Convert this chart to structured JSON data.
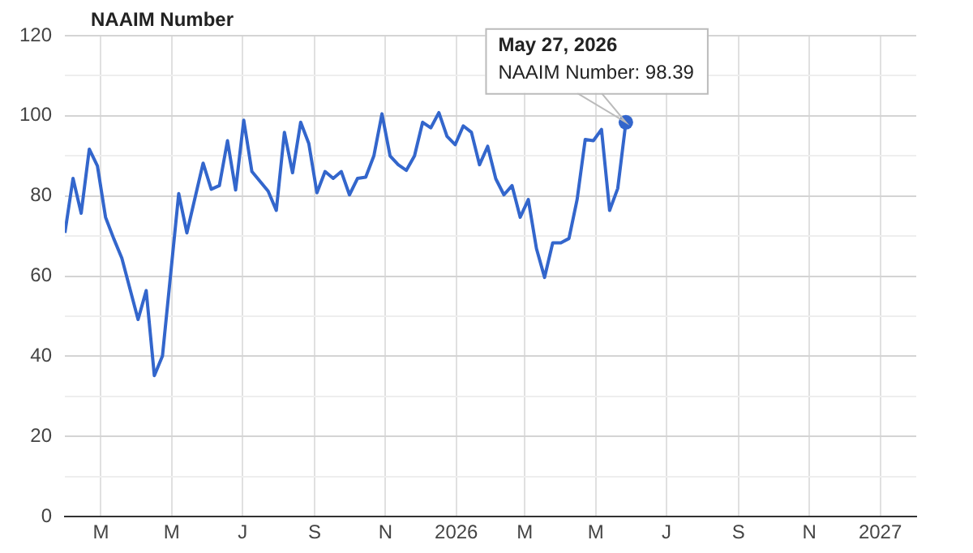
{
  "chart_data": {
    "type": "line",
    "title": "NAAIM Number",
    "x": [
      "2025-01-29",
      "2025-02-05",
      "2025-02-12",
      "2025-02-19",
      "2025-02-26",
      "2025-03-05",
      "2025-03-12",
      "2025-03-19",
      "2025-04-02",
      "2025-04-09",
      "2025-04-16",
      "2025-04-23",
      "2025-05-07",
      "2025-05-14",
      "2025-05-28",
      "2025-06-04",
      "2025-06-11",
      "2025-06-18",
      "2025-06-25",
      "2025-07-02",
      "2025-07-09",
      "2025-07-23",
      "2025-07-30",
      "2025-08-06",
      "2025-08-13",
      "2025-08-20",
      "2025-08-27",
      "2025-09-03",
      "2025-09-10",
      "2025-09-17",
      "2025-09-24",
      "2025-10-01",
      "2025-10-08",
      "2025-10-15",
      "2025-10-22",
      "2025-10-29",
      "2025-11-05",
      "2025-11-12",
      "2025-11-19",
      "2025-11-26",
      "2025-12-03",
      "2025-12-10",
      "2025-12-17",
      "2025-12-24",
      "2025-12-31",
      "2026-01-07",
      "2026-01-14",
      "2026-01-21",
      "2026-01-28",
      "2026-02-04",
      "2026-02-11",
      "2026-02-18",
      "2026-02-25",
      "2026-03-04",
      "2026-03-11",
      "2026-03-18",
      "2026-03-25",
      "2026-04-01",
      "2026-04-08",
      "2026-04-15",
      "2026-04-22",
      "2026-04-29",
      "2026-05-06",
      "2026-05-13",
      "2026-05-20",
      "2026-05-27"
    ],
    "series": [
      {
        "color": "#3366cc",
        "values": [
          70.8,
          84.4,
          75.7,
          91.7,
          87.5,
          74.7,
          69.4,
          64.5,
          49.2,
          56.4,
          35.2,
          40.1,
          80.6,
          70.8,
          88.2,
          81.7,
          82.6,
          93.8,
          81.5,
          98.9,
          86.1,
          81.2,
          76.4,
          95.9,
          85.8,
          98.4,
          93.1,
          80.8,
          86.1,
          84.4,
          86.1,
          80.3,
          84.4,
          84.7,
          90.0,
          100.5,
          90.0,
          87.8,
          86.4,
          90.0,
          98.4,
          97.0,
          100.8,
          94.9,
          92.8,
          97.5,
          95.9,
          87.8,
          92.4,
          84.3,
          80.3,
          82.6,
          74.7,
          79.1,
          66.9,
          59.7,
          68.3,
          68.3,
          69.4,
          79.1,
          94.1,
          93.8,
          96.6,
          76.4,
          81.9,
          98.39
        ]
      }
    ],
    "xlim": [
      "2025-01-29",
      "2027-02-01"
    ],
    "xticks": [
      {
        "value": "2025-03-01",
        "label": "M"
      },
      {
        "value": "2025-05-01",
        "label": "M"
      },
      {
        "value": "2025-07-01",
        "label": "J"
      },
      {
        "value": "2025-09-01",
        "label": "S"
      },
      {
        "value": "2025-11-01",
        "label": "N"
      },
      {
        "value": "2026-01-01",
        "label": "2026"
      },
      {
        "value": "2026-03-01",
        "label": "M"
      },
      {
        "value": "2026-05-01",
        "label": "M"
      },
      {
        "value": "2026-07-01",
        "label": "J"
      },
      {
        "value": "2026-09-01",
        "label": "S"
      },
      {
        "value": "2026-11-01",
        "label": "N"
      },
      {
        "value": "2027-01-01",
        "label": "2027"
      }
    ],
    "ylim": [
      0,
      120
    ],
    "yticks": [
      0,
      {
        "value": 10,
        "label": null
      },
      20,
      {
        "value": 30,
        "label": null
      },
      40,
      {
        "value": 50,
        "label": null
      },
      60,
      {
        "value": 70,
        "label": null
      },
      80,
      {
        "value": 90,
        "label": null
      },
      100,
      {
        "value": 110,
        "label": null
      },
      120
    ],
    "grid": true,
    "legend": false,
    "marker": "none",
    "line_style": "solid",
    "annotations": [
      {
        "text": "May 27, 2026\nNAAIM Number: 98.39",
        "x": "2026-05-27",
        "y": 98.39
      }
    ]
  }
}
